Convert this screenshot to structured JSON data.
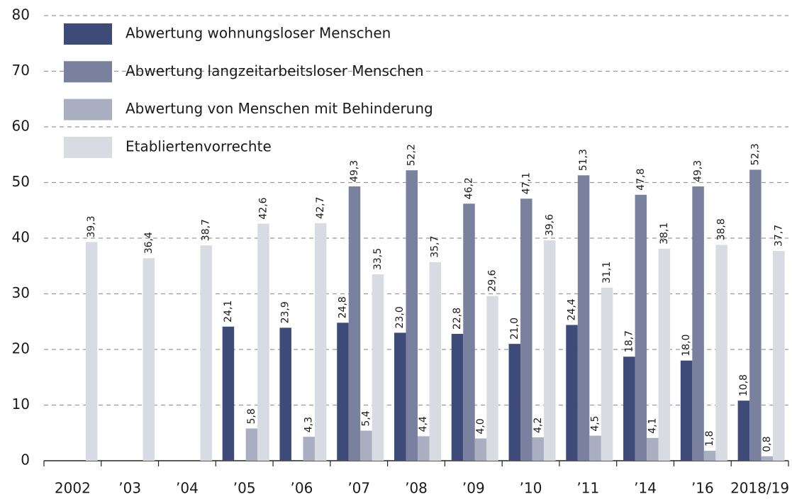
{
  "chart_data": {
    "type": "bar",
    "categories": [
      "2002",
      "’03",
      "’04",
      "’05",
      "’06",
      "’07",
      "’08",
      "’09",
      "’10",
      "’11",
      "’14",
      "’16",
      "2018/19"
    ],
    "series": [
      {
        "name": "Abwertung wohnungsloser Menschen",
        "color": "#3e4a78",
        "values": [
          null,
          null,
          null,
          24.1,
          23.9,
          24.8,
          23.0,
          22.8,
          21.0,
          24.4,
          18.7,
          18.0,
          10.8
        ],
        "value_labels": [
          null,
          null,
          null,
          "24,1",
          "23,9",
          "24,8",
          "23,0",
          "22,8",
          "21,0",
          "24,4",
          "18,7",
          "18,0",
          "10,8"
        ]
      },
      {
        "name": "Abwertung langzeitarbeitsloser Menschen",
        "color": "#7a819f",
        "values": [
          null,
          null,
          null,
          null,
          null,
          49.3,
          52.2,
          46.2,
          47.1,
          51.3,
          47.8,
          49.3,
          52.3
        ],
        "value_labels": [
          null,
          null,
          null,
          null,
          null,
          "49,3",
          "52,2",
          "46,2",
          "47,1",
          "51,3",
          "47,8",
          "49,3",
          "52,3"
        ]
      },
      {
        "name": "Abwertung von Menschen mit Behinderung",
        "color": "#a9aec0",
        "values": [
          null,
          null,
          null,
          5.8,
          4.3,
          5.4,
          4.4,
          4.0,
          4.2,
          4.5,
          4.1,
          1.8,
          0.8
        ],
        "value_labels": [
          null,
          null,
          null,
          "5,8",
          "4,3",
          "5,4",
          "4,4",
          "4,0",
          "4,2",
          "4,5",
          "4,1",
          "1,8",
          "0,8"
        ]
      },
      {
        "name": "Etabliertenvorrechte",
        "color": "#d9dbe2",
        "values": [
          39.3,
          36.4,
          38.7,
          42.6,
          42.7,
          33.5,
          35.7,
          29.6,
          39.6,
          31.1,
          38.1,
          38.8,
          37.7
        ],
        "value_labels": [
          "39,3",
          "36,4",
          "38,7",
          "42,6",
          "42,7",
          "33,5",
          "35,7",
          "29,6",
          "39,6",
          "31,1",
          "38,1",
          "38,8",
          "37,7"
        ]
      }
    ],
    "ylim": [
      0,
      80
    ],
    "yticks": [
      0,
      10,
      20,
      30,
      40,
      50,
      60,
      70,
      80
    ],
    "grid": true,
    "legend": "upper left"
  }
}
